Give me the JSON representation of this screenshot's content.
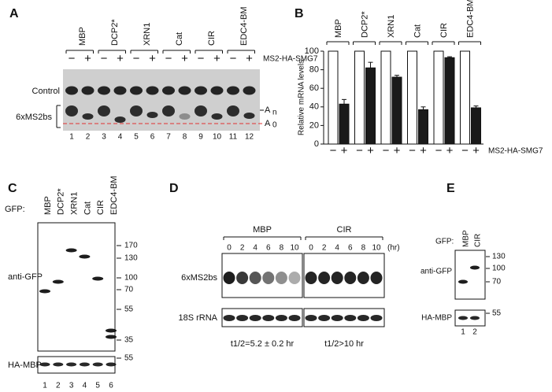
{
  "panels": {
    "A": {
      "letter": "A",
      "groups": [
        "MBP",
        "DCP2*",
        "XRN1",
        "Cat",
        "CIR",
        "EDC4-BM"
      ],
      "signs": [
        "−",
        "+"
      ],
      "treatment": "MS2-HA-SMG7",
      "row_labels": [
        "Control",
        "6xMS2bs"
      ],
      "tail_labels": [
        [
          "A",
          "n"
        ],
        [
          "A",
          "0"
        ]
      ],
      "lanes": [
        1,
        2,
        3,
        4,
        5,
        6,
        7,
        8,
        9,
        10,
        11,
        12
      ]
    },
    "C": {
      "letter": "C",
      "gfp": "GFP:",
      "lanes_labels": [
        "MBP",
        "DCP2*",
        "XRN1",
        "Cat",
        "CIR",
        "EDC4-BM"
      ],
      "blot_labels": [
        "anti-GFP",
        "HA-MBP"
      ],
      "markers": [
        170,
        130,
        100,
        70,
        55,
        35
      ],
      "lower_markers": [
        55
      ],
      "lanes": [
        1,
        2,
        3,
        4,
        5,
        6
      ]
    },
    "D": {
      "letter": "D",
      "groups": [
        "MBP",
        "CIR"
      ],
      "times": [
        0,
        2,
        4,
        6,
        8,
        10
      ],
      "unit": "(hr)",
      "blot_labels": [
        "6xMS2bs",
        "18S rRNA"
      ],
      "half_lives": [
        "t1/2=5.2 ± 0.2 hr",
        "t1/2>10 hr"
      ]
    },
    "E": {
      "letter": "E",
      "gfp": "GFP:",
      "lanes_labels": [
        "MBP",
        "CIR"
      ],
      "blot_labels": [
        "anti-GFP",
        "HA-MBP"
      ],
      "markers": [
        130,
        100,
        70
      ],
      "lower_markers": [
        55
      ],
      "lanes": [
        1,
        2
      ]
    }
  },
  "chart_data": {
    "type": "bar",
    "panel_letter": "B",
    "ylabel": "Relative mRNA levels",
    "treatment": "MS2-HA-SMG7",
    "categories": [
      "MBP",
      "DCP2*",
      "XRN1",
      "Cat",
      "CIR",
      "EDC4-BM"
    ],
    "series": [
      {
        "name": "−",
        "color": "#ffffff",
        "values": [
          100,
          100,
          100,
          100,
          100,
          100
        ]
      },
      {
        "name": "+",
        "color": "#1a1a1a",
        "values": [
          43,
          82,
          72,
          37,
          93,
          39
        ],
        "errors": [
          5,
          6,
          2,
          3,
          1,
          2
        ]
      }
    ],
    "ylim": [
      0,
      100
    ],
    "yticks": [
      0,
      20,
      40,
      60,
      80,
      100
    ],
    "grid": false
  }
}
